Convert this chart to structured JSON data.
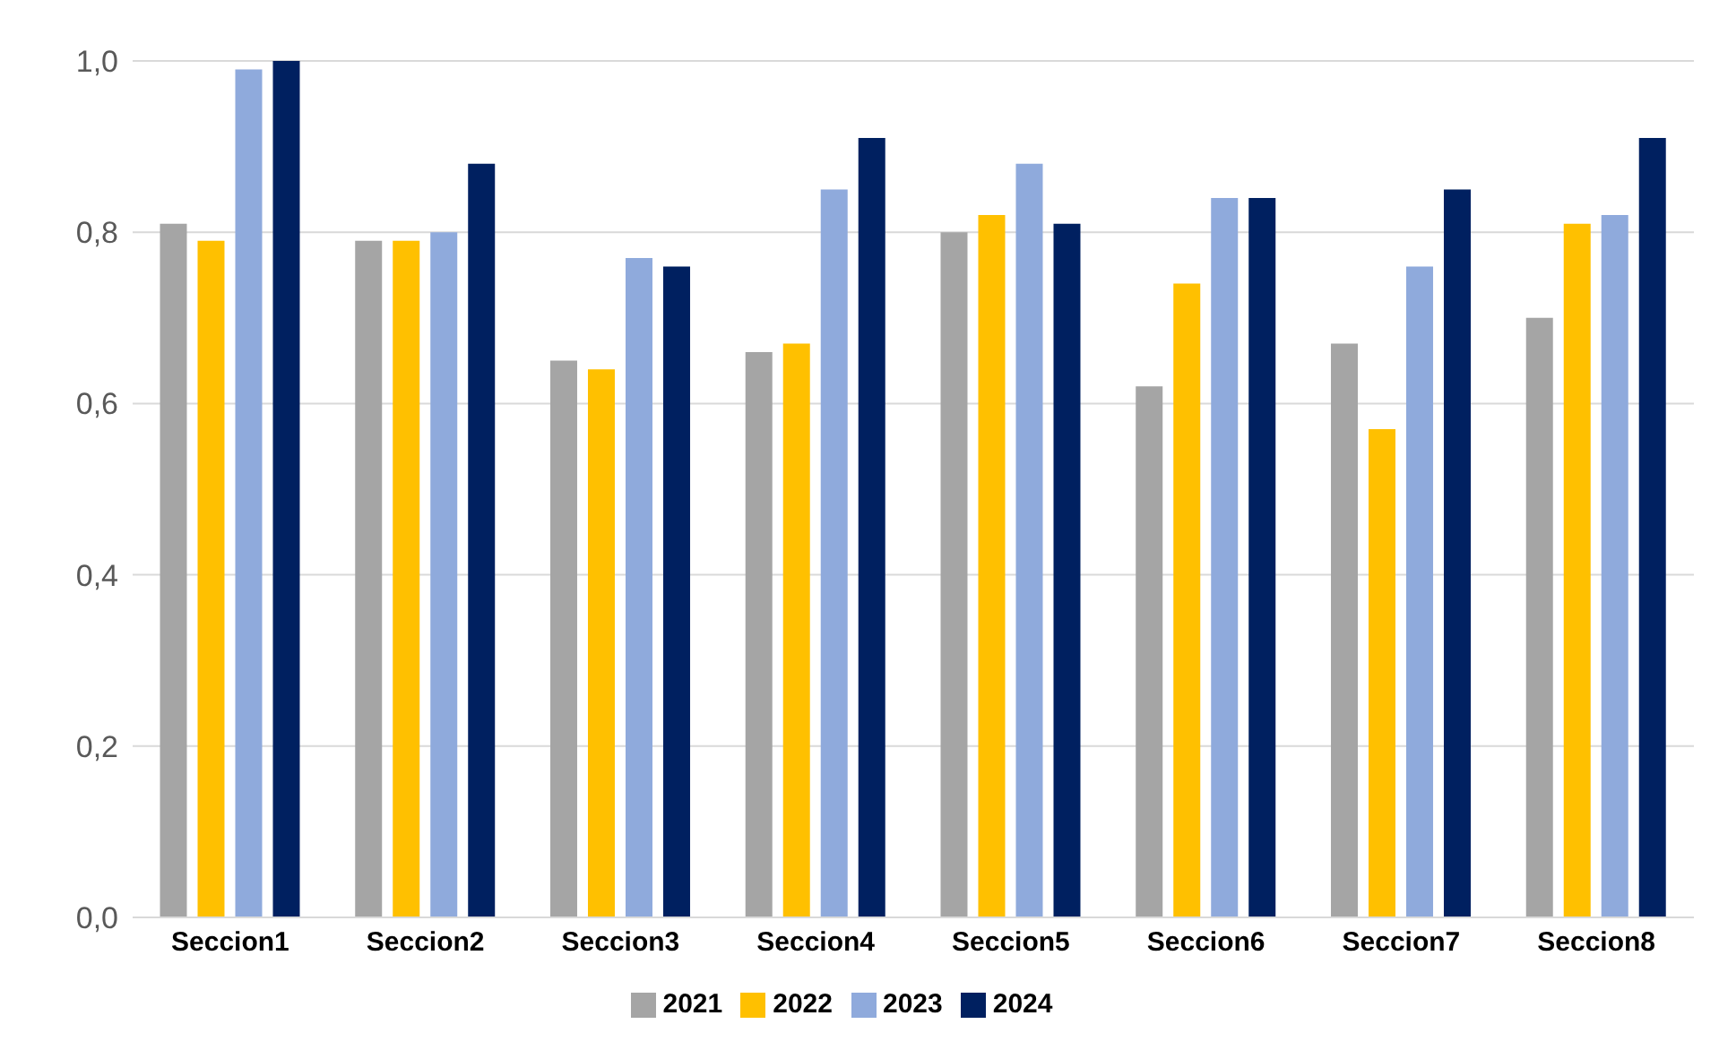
{
  "chart_data": {
    "type": "bar",
    "categories": [
      "Seccion1",
      "Seccion2",
      "Seccion3",
      "Seccion4",
      "Seccion5",
      "Seccion6",
      "Seccion7",
      "Seccion8"
    ],
    "series": [
      {
        "name": "2021",
        "color": "#a5a5a5",
        "values": [
          0.81,
          0.79,
          0.65,
          0.66,
          0.8,
          0.62,
          0.67,
          0.7
        ]
      },
      {
        "name": "2022",
        "color": "#ffc000",
        "values": [
          0.79,
          0.79,
          0.64,
          0.67,
          0.82,
          0.74,
          0.57,
          0.81
        ]
      },
      {
        "name": "2023",
        "color": "#8faadc",
        "values": [
          0.99,
          0.8,
          0.77,
          0.85,
          0.88,
          0.84,
          0.76,
          0.82
        ]
      },
      {
        "name": "2024",
        "color": "#002060",
        "values": [
          1.0,
          0.88,
          0.76,
          0.91,
          0.81,
          0.84,
          0.85,
          0.91
        ]
      }
    ],
    "ylim": [
      0,
      1
    ],
    "yticks": [
      {
        "value": 0,
        "label": "0,0"
      },
      {
        "value": 0.2,
        "label": "0,2"
      },
      {
        "value": 0.4,
        "label": "0,4"
      },
      {
        "value": 0.6,
        "label": "0,6"
      },
      {
        "value": 0.8,
        "label": "0,8"
      },
      {
        "value": 1,
        "label": "1,0"
      }
    ],
    "grid": "y",
    "legend": "bottom"
  }
}
